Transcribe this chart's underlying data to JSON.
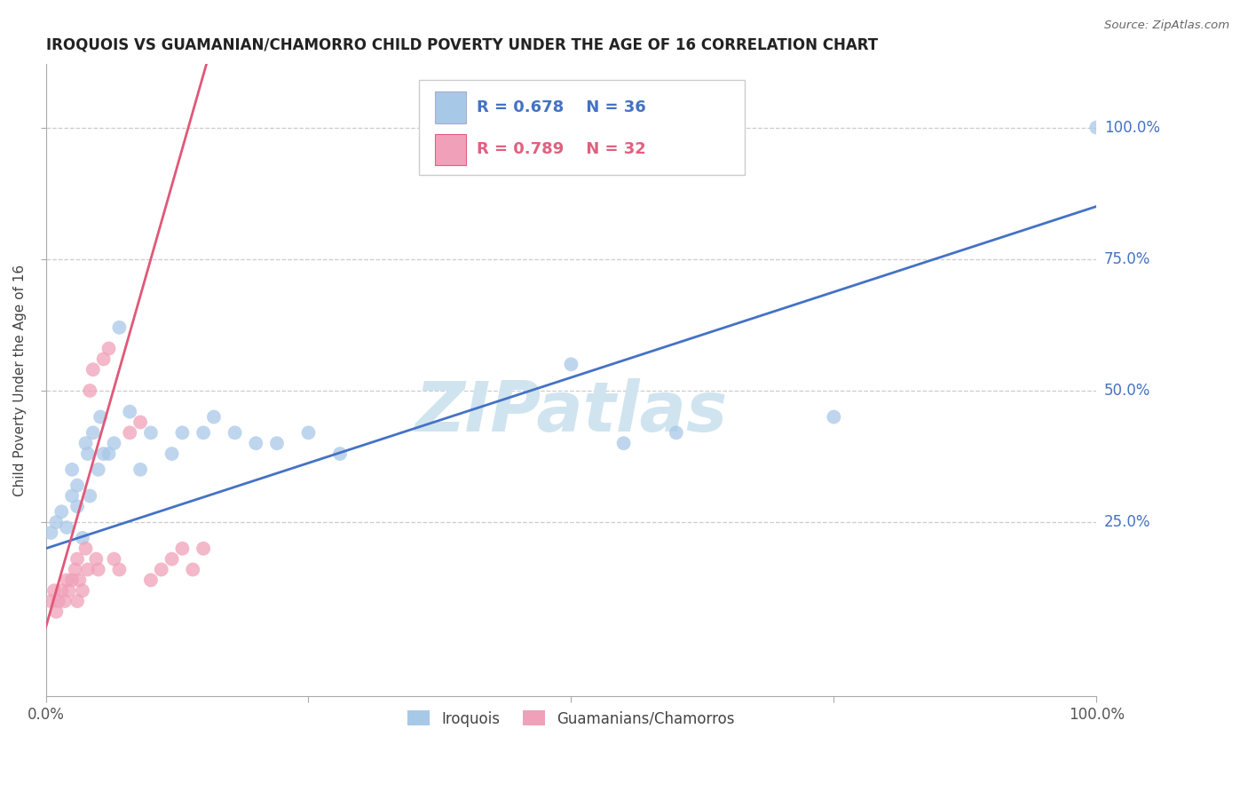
{
  "title": "IROQUOIS VS GUAMANIAN/CHAMORRO CHILD POVERTY UNDER THE AGE OF 16 CORRELATION CHART",
  "source": "Source: ZipAtlas.com",
  "ylabel": "Child Poverty Under the Age of 16",
  "xlim": [
    0,
    1
  ],
  "ylim": [
    -0.08,
    1.12
  ],
  "y_ticks": [
    0.25,
    0.5,
    0.75,
    1.0
  ],
  "y_tick_labels": [
    "25.0%",
    "50.0%",
    "75.0%",
    "100.0%"
  ],
  "iroquois_r": 0.678,
  "iroquois_n": 36,
  "guamanian_r": 0.789,
  "guamanian_n": 32,
  "iroquois_color": "#a8c8e8",
  "guamanian_color": "#f0a0b8",
  "iroquois_line_color": "#4472c4",
  "guamanian_line_color": "#e05878",
  "watermark": "ZIPatlas",
  "watermark_color": "#d0e4f0",
  "iroquois_x": [
    0.005,
    0.01,
    0.015,
    0.02,
    0.025,
    0.025,
    0.03,
    0.03,
    0.035,
    0.038,
    0.04,
    0.042,
    0.045,
    0.05,
    0.052,
    0.055,
    0.06,
    0.065,
    0.07,
    0.08,
    0.09,
    0.1,
    0.12,
    0.13,
    0.15,
    0.16,
    0.18,
    0.2,
    0.22,
    0.25,
    0.28,
    0.5,
    0.55,
    0.6,
    0.75,
    1.0
  ],
  "iroquois_y": [
    0.23,
    0.25,
    0.27,
    0.24,
    0.3,
    0.35,
    0.28,
    0.32,
    0.22,
    0.4,
    0.38,
    0.3,
    0.42,
    0.35,
    0.45,
    0.38,
    0.38,
    0.4,
    0.62,
    0.46,
    0.35,
    0.42,
    0.38,
    0.42,
    0.42,
    0.45,
    0.42,
    0.4,
    0.4,
    0.42,
    0.38,
    0.55,
    0.4,
    0.42,
    0.45,
    1.0
  ],
  "guamanian_x": [
    0.005,
    0.008,
    0.01,
    0.012,
    0.015,
    0.018,
    0.02,
    0.022,
    0.025,
    0.028,
    0.03,
    0.03,
    0.032,
    0.035,
    0.038,
    0.04,
    0.042,
    0.045,
    0.048,
    0.05,
    0.055,
    0.06,
    0.065,
    0.07,
    0.08,
    0.09,
    0.1,
    0.11,
    0.12,
    0.13,
    0.14,
    0.15
  ],
  "guamanian_y": [
    0.1,
    0.12,
    0.08,
    0.1,
    0.12,
    0.1,
    0.14,
    0.12,
    0.14,
    0.16,
    0.1,
    0.18,
    0.14,
    0.12,
    0.2,
    0.16,
    0.5,
    0.54,
    0.18,
    0.16,
    0.56,
    0.58,
    0.18,
    0.16,
    0.42,
    0.44,
    0.14,
    0.16,
    0.18,
    0.2,
    0.16,
    0.2
  ]
}
